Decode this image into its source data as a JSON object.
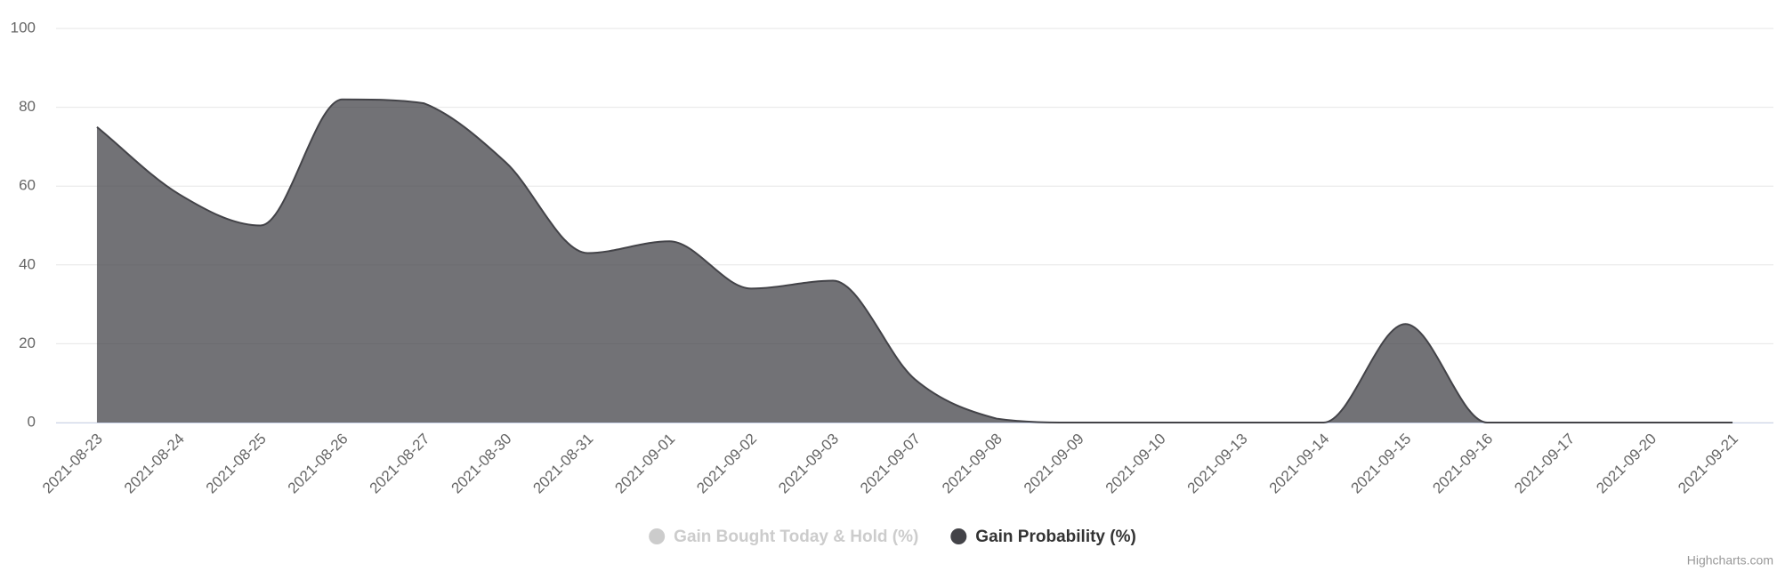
{
  "chart_data": {
    "type": "areaspline",
    "categories": [
      "2021-08-23",
      "2021-08-24",
      "2021-08-25",
      "2021-08-26",
      "2021-08-27",
      "2021-08-30",
      "2021-08-31",
      "2021-09-01",
      "2021-09-02",
      "2021-09-03",
      "2021-09-07",
      "2021-09-08",
      "2021-09-09",
      "2021-09-10",
      "2021-09-13",
      "2021-09-14",
      "2021-09-15",
      "2021-09-16",
      "2021-09-17",
      "2021-09-20",
      "2021-09-21"
    ],
    "series": [
      {
        "name": "Gain Bought Today & Hold (%)",
        "color": "#cccccc",
        "visible": false
      },
      {
        "name": "Gain Probability (%)",
        "color": "#434348",
        "visible": true,
        "values": [
          75,
          58,
          50,
          82,
          81,
          66,
          43,
          46,
          34,
          36,
          11,
          1,
          0,
          0,
          0,
          0,
          25,
          0,
          0,
          0,
          0
        ]
      }
    ],
    "ylim": [
      0,
      100
    ],
    "yticks": [
      0,
      20,
      40,
      60,
      80,
      100
    ],
    "grid": true,
    "credits": "Highcharts.com"
  }
}
